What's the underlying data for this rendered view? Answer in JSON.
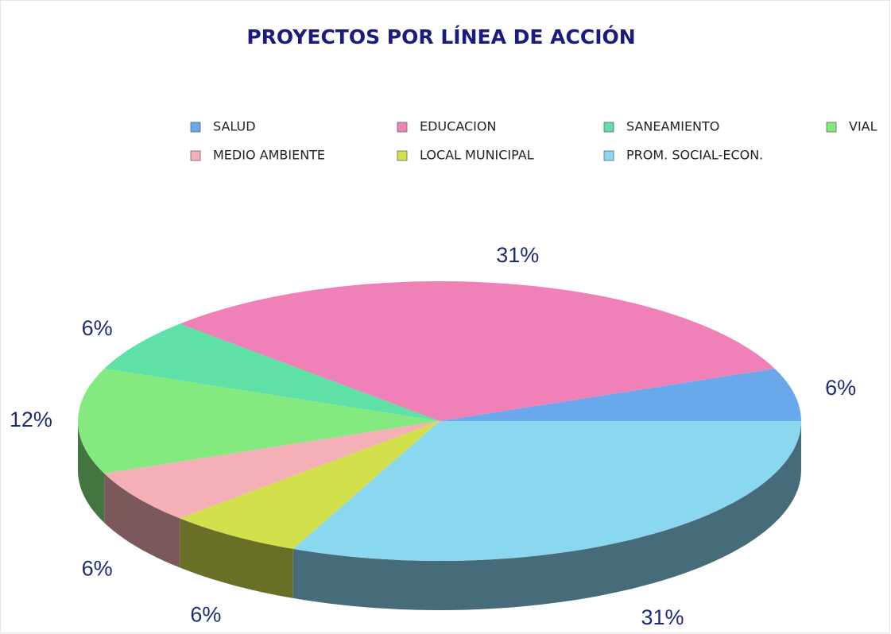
{
  "chart_data": {
    "type": "pie3d",
    "title": "PROYECTOS POR LÍNEA DE ACCIÓN",
    "categories": [
      "SALUD",
      "EDUCACION",
      "SANEAMIENTO",
      "VIAL",
      "MEDIO AMBIENTE",
      "LOCAL MUNICIPAL",
      "PROM. SOCIAL-ECON."
    ],
    "values": [
      6,
      31,
      6,
      12,
      6,
      6,
      31
    ],
    "value_labels": [
      "6%",
      "31%",
      "6%",
      "12%",
      "6%",
      "6%",
      "31%"
    ],
    "colors": [
      "#6aa8ec",
      "#f080b8",
      "#5ee0a6",
      "#84ea80",
      "#f4b0b6",
      "#d2e04c",
      "#8ad8f0"
    ],
    "legend": "top"
  }
}
